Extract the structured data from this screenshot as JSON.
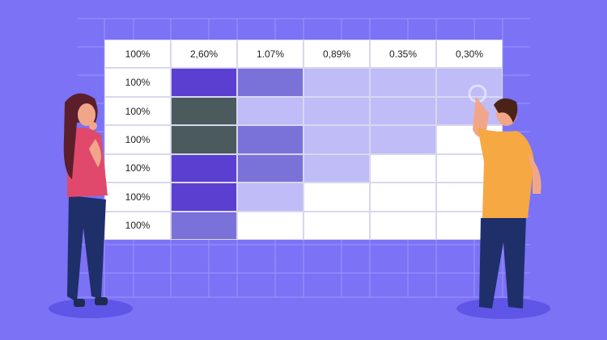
{
  "header": [
    "100%",
    "2,60%",
    "1.07%",
    "0,89%",
    "0.35%",
    "0,30%"
  ],
  "rows": [
    {
      "label": "100%",
      "cells": [
        "#5a3fd1",
        "#7a72d8",
        "#bfbcf8",
        "#bfbcf8",
        "#bfbcf8"
      ]
    },
    {
      "label": "100%",
      "cells": [
        "#4a5a5d",
        "#bfbcf8",
        "#bfbcf8",
        "#bfbcf8",
        "#bfbcf8"
      ]
    },
    {
      "label": "100%",
      "cells": [
        "#4a5a5d",
        "#7a72d8",
        "#bfbcf8",
        "#bfbcf8",
        "#ffffff"
      ]
    },
    {
      "label": "100%",
      "cells": [
        "#5a3fd1",
        "#7a72d8",
        "#bfbcf8",
        "#ffffff",
        "#ffffff"
      ]
    },
    {
      "label": "100%",
      "cells": [
        "#5a3fd1",
        "#bfbcf8",
        "#ffffff",
        "#ffffff",
        "#ffffff"
      ]
    },
    {
      "label": "100%",
      "cells": [
        "#7a72d8",
        "#ffffff",
        "#ffffff",
        "#ffffff",
        "#ffffff"
      ]
    }
  ],
  "colors": {
    "background": "#7b72f6",
    "grid_line": "#9c95fb",
    "shadow": "#5f55e6"
  }
}
